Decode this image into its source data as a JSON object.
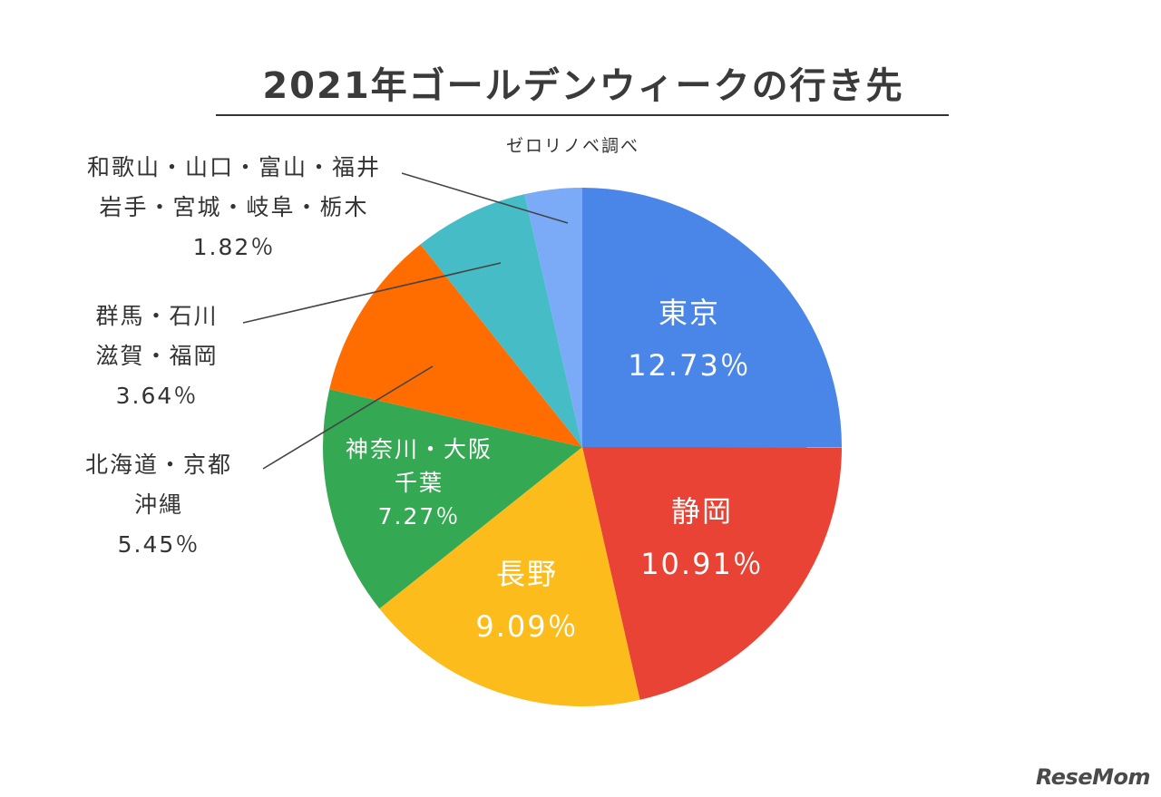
{
  "title": "2021年ゴールデンウィークの行き先",
  "source": "ゼロリノベ調べ",
  "logo": "ReseMom",
  "chart_data": {
    "type": "pie",
    "title": "2021年ゴールデンウィークの行き先",
    "slices": [
      {
        "label": "東京",
        "value": 12.73,
        "display": "12.73％",
        "color": "#4a86e8"
      },
      {
        "label": "静岡",
        "value": 10.91,
        "display": "10.91％",
        "color": "#e94335"
      },
      {
        "label": "長野",
        "value": 9.09,
        "display": "9.09％",
        "color": "#fbbc1c"
      },
      {
        "label": "神奈川・大阪 千葉",
        "label_lines": [
          "神奈川・大阪",
          "千葉"
        ],
        "value": 7.27,
        "display": "7.27％",
        "color": "#34a853"
      },
      {
        "label": "北海道・京都 沖縄",
        "label_lines": [
          "北海道・京都",
          "沖縄"
        ],
        "value": 5.45,
        "display": "5.45％",
        "color": "#ff6d00"
      },
      {
        "label": "群馬・石川 滋賀・福岡",
        "label_lines": [
          "群馬・石川",
          "滋賀・福岡"
        ],
        "value": 3.64,
        "display": "3.64％",
        "color": "#46bdc6"
      },
      {
        "label": "和歌山・山口・富山・福井 岩手・宮城・岐阜・栃木",
        "label_lines": [
          "和歌山・山口・富山・福井",
          "岩手・宮城・岐阜・栃木"
        ],
        "value": 1.82,
        "display": "1.82％",
        "color": "#7baaf7"
      }
    ]
  }
}
